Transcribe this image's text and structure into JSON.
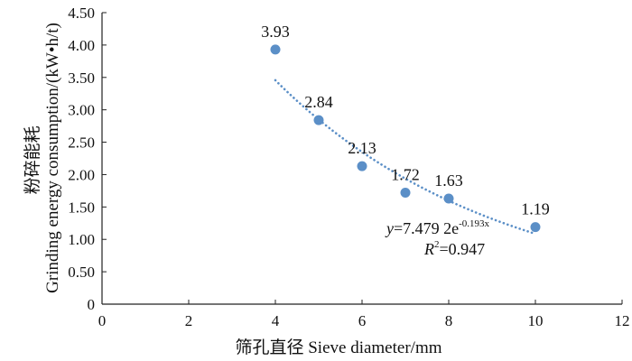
{
  "chart_data": {
    "type": "scatter",
    "xlabel": "筛孔直径  Sieve diameter/mm",
    "ylabel_cn": "粉碎能耗",
    "ylabel_en": "Grinding energy consumption/(kW•h/t)",
    "xlim": [
      0,
      12
    ],
    "ylim": [
      0,
      4.5
    ],
    "x_ticks": [
      "0",
      "2",
      "4",
      "6",
      "8",
      "10",
      "12"
    ],
    "y_ticks": [
      "0",
      "0.50",
      "1.00",
      "1.50",
      "2.00",
      "2.50",
      "3.00",
      "3.50",
      "4.00",
      "4.50"
    ],
    "series": [
      {
        "x": [
          4,
          5,
          6,
          7,
          8,
          10
        ],
        "y": [
          3.93,
          2.84,
          2.13,
          1.72,
          1.63,
          1.19
        ],
        "labels": [
          "3.93",
          "2.84",
          "2.13",
          "1.72",
          "1.63",
          "1.19"
        ],
        "color": "#5b8fc7"
      }
    ],
    "trendline": {
      "type": "exponential",
      "a": 7.4792,
      "b": -0.193,
      "x_range": [
        4,
        10
      ],
      "style": "dotted",
      "color": "#5b8fc7",
      "equation": {
        "y_var": "y",
        "eq_main": "=7.479 2e",
        "eq_exp": "-0.193x",
        "r2_var": "R",
        "r2_sup": "2",
        "r2_value": "=0.947"
      }
    },
    "grid": false,
    "legend": "none"
  }
}
